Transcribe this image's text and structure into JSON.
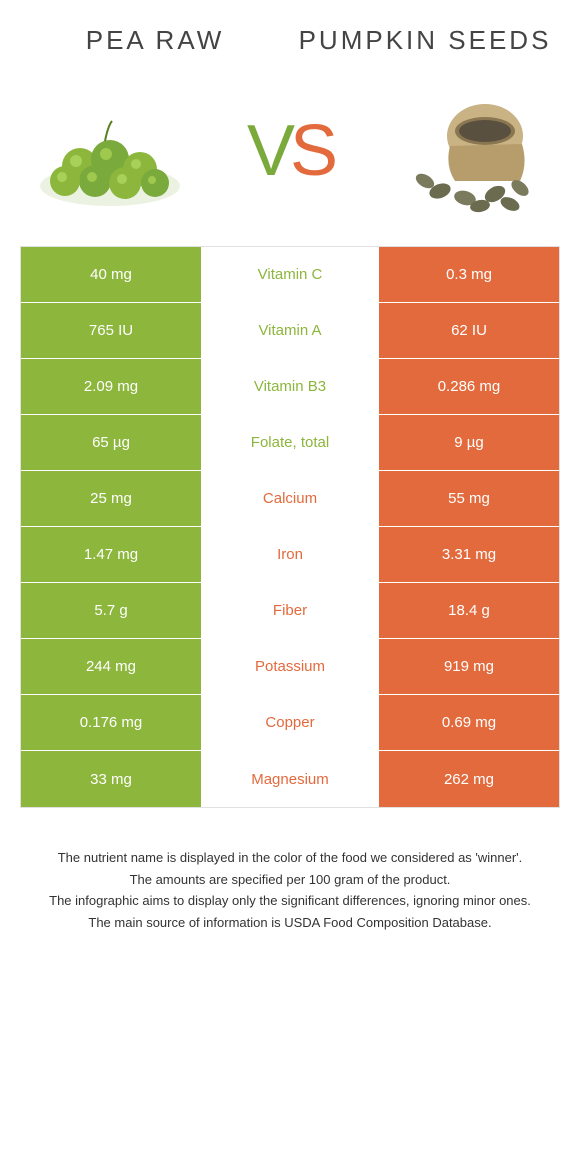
{
  "colors": {
    "left": "#8cb63c",
    "right": "#e36a3d",
    "background": "#ffffff",
    "text": "#333333"
  },
  "header": {
    "left_title": "pea raw",
    "right_title": "pumpkin seeds",
    "vs_v": "V",
    "vs_s": "S"
  },
  "rows": [
    {
      "left": "40 mg",
      "label": "Vitamin C",
      "right": "0.3 mg",
      "winner": "left"
    },
    {
      "left": "765 IU",
      "label": "Vitamin A",
      "right": "62 IU",
      "winner": "left"
    },
    {
      "left": "2.09 mg",
      "label": "Vitamin B3",
      "right": "0.286 mg",
      "winner": "left"
    },
    {
      "left": "65 µg",
      "label": "Folate, total",
      "right": "9 µg",
      "winner": "left"
    },
    {
      "left": "25 mg",
      "label": "Calcium",
      "right": "55 mg",
      "winner": "right"
    },
    {
      "left": "1.47 mg",
      "label": "Iron",
      "right": "3.31 mg",
      "winner": "right"
    },
    {
      "left": "5.7 g",
      "label": "Fiber",
      "right": "18.4 g",
      "winner": "right"
    },
    {
      "left": "244 mg",
      "label": "Potassium",
      "right": "919 mg",
      "winner": "right"
    },
    {
      "left": "0.176 mg",
      "label": "Copper",
      "right": "0.69 mg",
      "winner": "right"
    },
    {
      "left": "33 mg",
      "label": "Magnesium",
      "right": "262 mg",
      "winner": "right"
    }
  ],
  "footer": {
    "line1": "The nutrient name is displayed in the color of the food we considered as 'winner'.",
    "line2": "The amounts are specified per 100 gram of the product.",
    "line3": "The infographic aims to display only the significant differences, ignoring minor ones.",
    "line4": "The main source of information is USDA Food Composition Database."
  }
}
